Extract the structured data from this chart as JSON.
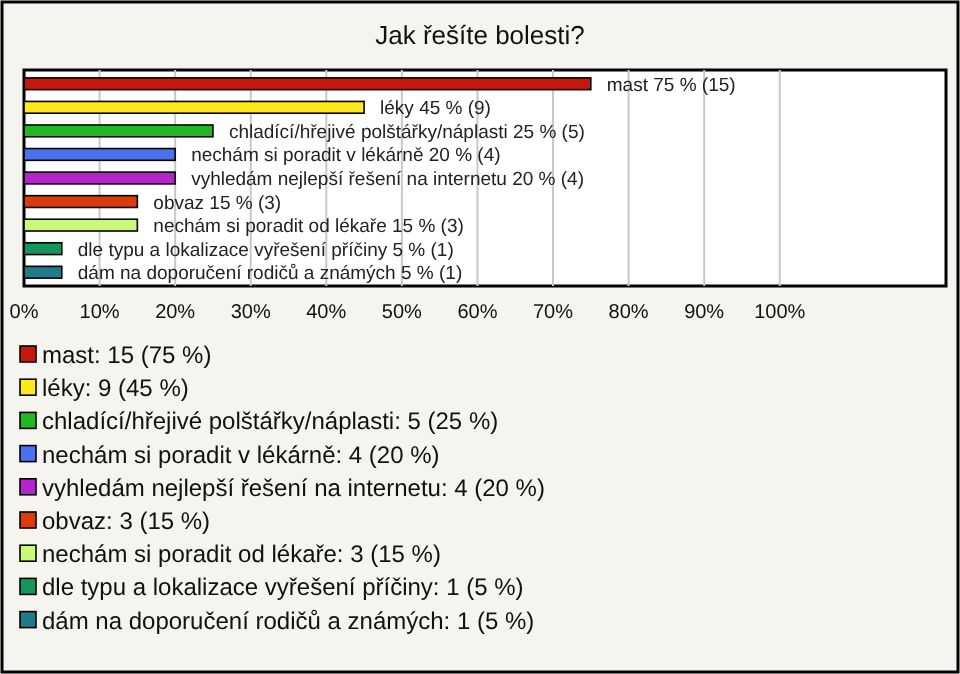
{
  "chart_data": {
    "type": "bar",
    "orientation": "horizontal",
    "title": "Jak řešíte bolesti?",
    "categories": [
      "mast",
      "léky",
      "chladící/hřejivé polštářky/náplasti",
      "nechám si poradit v lékárně",
      "vyhledám nejlepší řešení na internetu",
      "obvaz",
      "nechám si poradit od lékaře",
      "dle typu a lokalizace vyřešení příčiny",
      "dám na doporučení rodičů a známých"
    ],
    "values": [
      75,
      45,
      25,
      20,
      20,
      15,
      15,
      5,
      5
    ],
    "value_labels": [
      "75 % (15)",
      "45 % (9)",
      "25 % (5)",
      "20 % (4)",
      "20 % (4)",
      "15 % (3)",
      "15 % (3)",
      "5 % (1)",
      "5 % (1)"
    ],
    "colors": [
      "#c4180c",
      "#ffe81a",
      "#22b822",
      "#4a72ee",
      "#b822cc",
      "#dc3c0c",
      "#c8fa78",
      "#14965a",
      "#1f7a8a"
    ],
    "xlim": [
      0,
      122
    ],
    "xticks": [
      {
        "value": 0,
        "label": "0%"
      },
      {
        "value": 10,
        "label": "10%"
      },
      {
        "value": 20,
        "label": "20%"
      },
      {
        "value": 30,
        "label": "30%"
      },
      {
        "value": 40,
        "label": "40%"
      },
      {
        "value": 50,
        "label": "50%"
      },
      {
        "value": 60,
        "label": "60%"
      },
      {
        "value": 70,
        "label": "70%"
      },
      {
        "value": 80,
        "label": "80%"
      },
      {
        "value": 90,
        "label": "90%"
      },
      {
        "value": 100,
        "label": "100%"
      }
    ],
    "grid": "x",
    "annotations": [
      "mast: 15 (75 %)",
      "léky: 9 (45 %)",
      "chladící/hřejivé polštářky/náplasti: 5 (25 %)",
      "nechám si poradit v lékárně: 4 (20 %)",
      "vyhledám nejlepší řešení na internetu: 4 (20 %)",
      "obvaz: 3 (15 %)",
      "nechám si poradit od lékaře: 3 (15 %)",
      "dle typu a lokalizace vyřešení příčiny: 1 (5 %)",
      "dám na doporučení rodičů a známých: 1 (5 %)"
    ]
  }
}
